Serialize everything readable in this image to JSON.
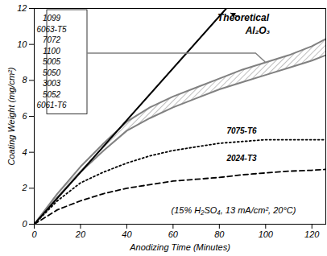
{
  "chart_data": {
    "type": "line",
    "x_label": "Anodizing Time (Minutes)",
    "y_label": "Coating Weight (mg/cm²)",
    "xlim": [
      0,
      126
    ],
    "xticks": [
      0,
      20,
      40,
      60,
      80,
      100,
      120
    ],
    "ylim": [
      0,
      12
    ],
    "yticks": [
      0,
      2,
      4,
      6,
      8,
      10,
      12
    ],
    "grid": false,
    "annotations": [
      "(15% H₂SO₄, 13 mA/cm², 20°C)"
    ],
    "series": [
      {
        "name": "Theoretical Al₂O₃",
        "color": "#000000",
        "line_style": "solid",
        "x": [
          0,
          83
        ],
        "values": [
          0,
          12
        ]
      },
      {
        "name": "7075-T6",
        "color": "#000000",
        "line_style": "dotted",
        "x": [
          0,
          10,
          20,
          30,
          40,
          50,
          60,
          70,
          80,
          90,
          100,
          110,
          120,
          126
        ],
        "values": [
          0,
          1.3,
          2.3,
          2.9,
          3.4,
          3.8,
          4.1,
          4.3,
          4.5,
          4.6,
          4.7,
          4.7,
          4.7,
          4.7
        ]
      },
      {
        "name": "2024-T3",
        "color": "#000000",
        "line_style": "dashed",
        "x": [
          0,
          10,
          20,
          30,
          40,
          50,
          60,
          70,
          80,
          90,
          100,
          110,
          120,
          126
        ],
        "values": [
          0,
          0.8,
          1.3,
          1.7,
          2.0,
          2.2,
          2.4,
          2.5,
          2.6,
          2.75,
          2.85,
          2.95,
          3.0,
          3.05
        ]
      }
    ],
    "band": {
      "alloys": [
        "1099",
        "6063-T5",
        "7072",
        "1100",
        "5005",
        "5050",
        "3003",
        "5052",
        "6061-T6"
      ],
      "color": "#808080",
      "x": [
        0,
        10,
        20,
        30,
        40,
        50,
        60,
        70,
        80,
        90,
        100,
        110,
        120,
        126
      ],
      "lower": [
        0,
        1.5,
        2.9,
        4.1,
        5.2,
        5.9,
        6.5,
        7.0,
        7.5,
        7.9,
        8.3,
        8.7,
        9.1,
        9.4
      ],
      "upper": [
        0,
        1.7,
        3.2,
        4.5,
        5.7,
        6.5,
        7.1,
        7.6,
        8.1,
        8.6,
        9.0,
        9.4,
        9.9,
        10.3
      ]
    }
  }
}
